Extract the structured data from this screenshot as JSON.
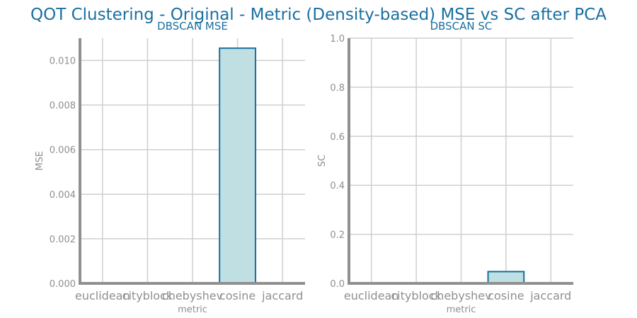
{
  "figure": {
    "title": "QOT Clustering - Original - Metric (Density-based) MSE vs SC after PCA",
    "colors": {
      "title": "#1a6fa0",
      "bar_fill": "#bfdfe3",
      "bar_edge": "#1a6fa0",
      "text": "#8f8f8f",
      "grid": "#cfcfcf",
      "axis": "#909090"
    }
  },
  "chart_data": [
    {
      "type": "bar",
      "title": "DBSCAN MSE",
      "xlabel": "metric",
      "ylabel": "MSE",
      "categories": [
        "euclidean",
        "cityblock",
        "chebyshev",
        "cosine",
        "jaccard"
      ],
      "values": [
        0,
        0,
        0,
        0.01055,
        0
      ],
      "ylim": [
        0,
        0.011
      ],
      "yticks": [
        "0.000",
        "0.002",
        "0.004",
        "0.006",
        "0.008",
        "0.010"
      ],
      "grid": true
    },
    {
      "type": "bar",
      "title": "DBSCAN SC",
      "xlabel": "metric",
      "ylabel": "SC",
      "categories": [
        "euclidean",
        "cityblock",
        "chebyshev",
        "cosine",
        "jaccard"
      ],
      "values": [
        0,
        0,
        0,
        0.048,
        0
      ],
      "ylim": [
        0,
        1.0
      ],
      "yticks": [
        "0.0",
        "0.2",
        "0.4",
        "0.6",
        "0.8",
        "1.0"
      ],
      "grid": true
    }
  ]
}
